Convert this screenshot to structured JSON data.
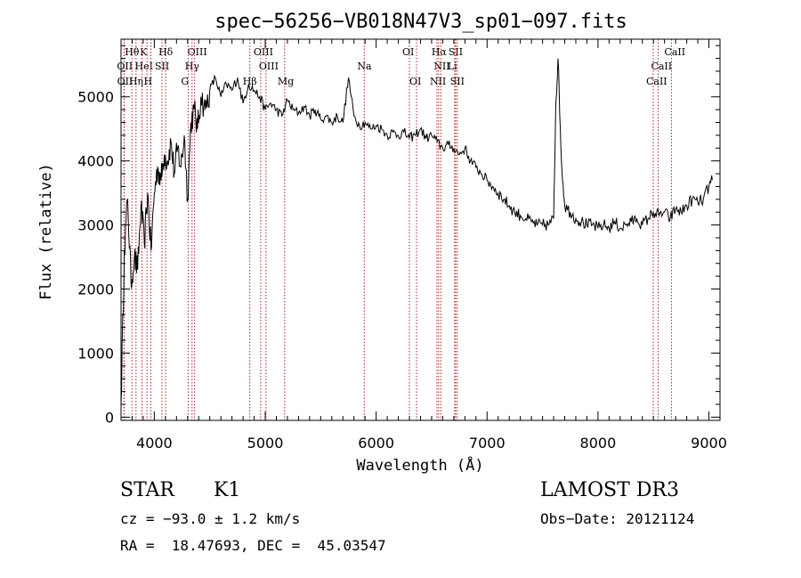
{
  "chart_data": {
    "type": "line",
    "title": "spec−56256−VB018N47V3_sp01−097.fits",
    "xlabel": "Wavelength (Å)",
    "ylabel": "Flux (relative)",
    "xlim": [
      3700,
      9100
    ],
    "ylim": [
      -50,
      5900
    ],
    "xticks": [
      4000,
      5000,
      6000,
      7000,
      8000,
      9000
    ],
    "yticks": [
      0,
      1000,
      2000,
      3000,
      4000,
      5000
    ],
    "line_color": "#000000",
    "marker_color": "#b22222",
    "series": [
      {
        "x": [
          3700,
          3730,
          3760,
          3790,
          3820,
          3850,
          3880,
          3910,
          3940,
          3970,
          4000,
          4030,
          4060,
          4090,
          4120,
          4150,
          4180,
          4210,
          4240,
          4270,
          4300,
          4330,
          4360,
          4390,
          4420,
          4460,
          4500,
          4550,
          4600,
          4650,
          4700,
          4750,
          4800,
          4850,
          4900,
          4950,
          5000,
          5050,
          5100,
          5150,
          5200,
          5250,
          5300,
          5350,
          5400,
          5450,
          5500,
          5550,
          5600,
          5650,
          5700,
          5750,
          5800,
          5850,
          5900,
          5950,
          6000,
          6050,
          6100,
          6150,
          6200,
          6250,
          6300,
          6350,
          6400,
          6450,
          6500,
          6550,
          6600,
          6650,
          6700,
          6750,
          6800,
          6850,
          6900,
          6950,
          7000,
          7050,
          7100,
          7150,
          7200,
          7250,
          7300,
          7350,
          7400,
          7450,
          7500,
          7550,
          7600,
          7620,
          7640,
          7670,
          7700,
          7750,
          7800,
          7850,
          7900,
          7950,
          8000,
          8050,
          8100,
          8150,
          8200,
          8250,
          8300,
          8350,
          8400,
          8450,
          8500,
          8550,
          8600,
          8650,
          8700,
          8750,
          8800,
          8850,
          8900,
          8950,
          9000,
          9030
        ],
        "y": [
          200,
          2600,
          3400,
          2100,
          2500,
          2300,
          3300,
          2700,
          3500,
          2600,
          3500,
          3900,
          3700,
          4100,
          4000,
          4300,
          3800,
          4200,
          3900,
          4400,
          3400,
          4600,
          4800,
          4500,
          5000,
          4800,
          5100,
          5300,
          5000,
          5200,
          5100,
          5300,
          4900,
          5200,
          5100,
          5000,
          4800,
          4900,
          4800,
          4700,
          4950,
          4800,
          4750,
          4850,
          4700,
          4800,
          4650,
          4700,
          4600,
          4700,
          4600,
          5300,
          4700,
          4550,
          4600,
          4500,
          4550,
          4500,
          4400,
          4450,
          4400,
          4450,
          4350,
          4400,
          4500,
          4350,
          4400,
          4300,
          4200,
          4250,
          4200,
          4100,
          4200,
          4000,
          3900,
          3800,
          3700,
          3600,
          3500,
          3400,
          3300,
          3200,
          3150,
          3100,
          3050,
          3000,
          3000,
          3000,
          3100,
          4900,
          5600,
          4000,
          3300,
          3200,
          3100,
          3050,
          3000,
          3000,
          2950,
          3000,
          2950,
          3050,
          2950,
          3000,
          3050,
          3100,
          3000,
          3100,
          3200,
          3150,
          3200,
          3100,
          3250,
          3200,
          3300,
          3400,
          3350,
          3400,
          3600,
          3700
        ]
      }
    ],
    "line_markers": [
      {
        "label": "Hθ",
        "x": 3798,
        "row": 1
      },
      {
        "label": "K",
        "x": 3934,
        "row": 1
      },
      {
        "label": "Hδ",
        "x": 4102,
        "row": 1
      },
      {
        "label": "OIII",
        "x": 4363,
        "row": 1
      },
      {
        "label": "OIII",
        "x": 4959,
        "row": 1
      },
      {
        "label": "OI",
        "x": 6300,
        "row": 1
      },
      {
        "label": "Hα",
        "x": 6563,
        "row": 1
      },
      {
        "label": "SII",
        "x": 6716,
        "row": 1
      },
      {
        "label": "CaII",
        "x": 8662,
        "row": 1
      },
      {
        "label": "OII",
        "x": 3727,
        "row": 2
      },
      {
        "label": "HeI",
        "x": 3889,
        "row": 2
      },
      {
        "label": "SII",
        "x": 4069,
        "row": 2
      },
      {
        "label": "Hγ",
        "x": 4340,
        "row": 2
      },
      {
        "label": "OIII",
        "x": 5007,
        "row": 2
      },
      {
        "label": "Na",
        "x": 5893,
        "row": 2
      },
      {
        "label": "NII",
        "x": 6583,
        "row": 2
      },
      {
        "label": "Li",
        "x": 6708,
        "row": 2
      },
      {
        "label": "CaII",
        "x": 8542,
        "row": 2
      },
      {
        "label": "OII",
        "x": 3729,
        "row": 3
      },
      {
        "label": "Hη",
        "x": 3835,
        "row": 3
      },
      {
        "label": "H",
        "x": 3969,
        "row": 3
      },
      {
        "label": "G",
        "x": 4305,
        "row": 3
      },
      {
        "label": "Hβ",
        "x": 4861,
        "row": 3
      },
      {
        "label": "Mg",
        "x": 5175,
        "row": 3
      },
      {
        "label": "OI",
        "x": 6364,
        "row": 3
      },
      {
        "label": "NII",
        "x": 6548,
        "row": 3
      },
      {
        "label": "SII",
        "x": 6731,
        "row": 3
      },
      {
        "label": "CaII",
        "x": 8498,
        "row": 3
      }
    ]
  },
  "info": {
    "class": "STAR",
    "subclass": "K1",
    "survey": "LAMOST DR3",
    "cz": "cz = −93.0 ± 1.2 km/s",
    "obs_date": "Obs−Date: 20121124",
    "coords": "RA =  18.47693, DEC =  45.03547"
  }
}
